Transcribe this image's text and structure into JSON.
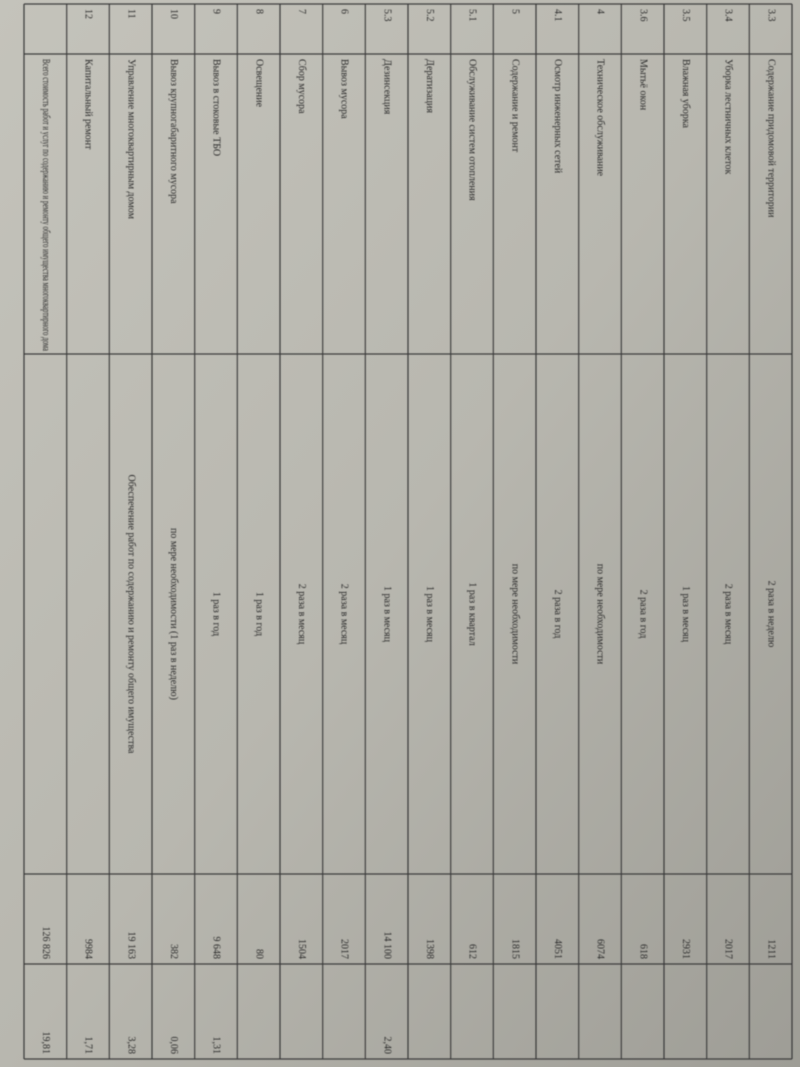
{
  "table": {
    "rows": [
      {
        "num": "3.3",
        "name": "Содержание придомовой территории",
        "period": "2 раза в неделю",
        "cost": "1211"
      },
      {
        "num": "3.4",
        "name": "Уборка лестничных клеток",
        "period": "2 раза в месяц",
        "cost": "2017"
      },
      {
        "num": "3.5",
        "name": "Влажная уборка",
        "period": "1 раз в месяц",
        "cost": "2931"
      },
      {
        "num": "3.6",
        "name": "Мытьё окон",
        "period": "2 раза в год",
        "cost": "618"
      },
      {
        "num": "4",
        "name": "Техническое обслуживание",
        "period": "по мере необходимости",
        "cost": "6074"
      },
      {
        "num": "4.1",
        "name": "Осмотр инженерных сетей",
        "period": "2 раза в год",
        "cost": "4051"
      },
      {
        "num": "5",
        "name": "Содержание и ремонт",
        "period": "по мере необходимости",
        "cost": "1815"
      },
      {
        "num": "5.1",
        "name": "Обслуживание систем отопления",
        "period": "1 раз в квартал",
        "cost": "612"
      },
      {
        "num": "5.2",
        "name": "Дератизация",
        "period": "1 раз в месяц",
        "cost": "1398"
      },
      {
        "num": "5.3",
        "name": "Дезинсекция",
        "period": "1 раз в месяц",
        "cost": "14 100",
        "rate": "2,40"
      },
      {
        "num": "6",
        "name": "Вывоз мусора",
        "period": "2 раза в месяц",
        "cost": "2017"
      },
      {
        "num": "7",
        "name": "Сбор мусора",
        "period": "2 раза в месяц",
        "cost": "1504"
      },
      {
        "num": "8",
        "name": "Освещение",
        "period": "1 раз в год",
        "cost": "80"
      },
      {
        "num": "9",
        "name": "Вывоз в стоковые ТБО",
        "period": "1 раз в год",
        "cost": "9 648",
        "rate": "1,31"
      },
      {
        "num": "10",
        "name": "Вывоз крупногабаритного мусора",
        "period": "по мере необходимости (1 раз в неделю)",
        "cost": "382",
        "rate": "0,06"
      },
      {
        "num": "11",
        "name": "Управление многоквартирным домом",
        "period": "Обеспечение работ по содержанию и ремонту общего имущества",
        "cost": "19 163",
        "rate": "3,28"
      },
      {
        "num": "12",
        "name": "Капитальный ремонт",
        "cost": "9984",
        "rate": "1,71"
      },
      {
        "name": "Всего стоимость работ и услуг по содержанию и ремонту общего имущества многоквартирного дома",
        "cost": "126 826",
        "rate": "19,81"
      }
    ]
  }
}
